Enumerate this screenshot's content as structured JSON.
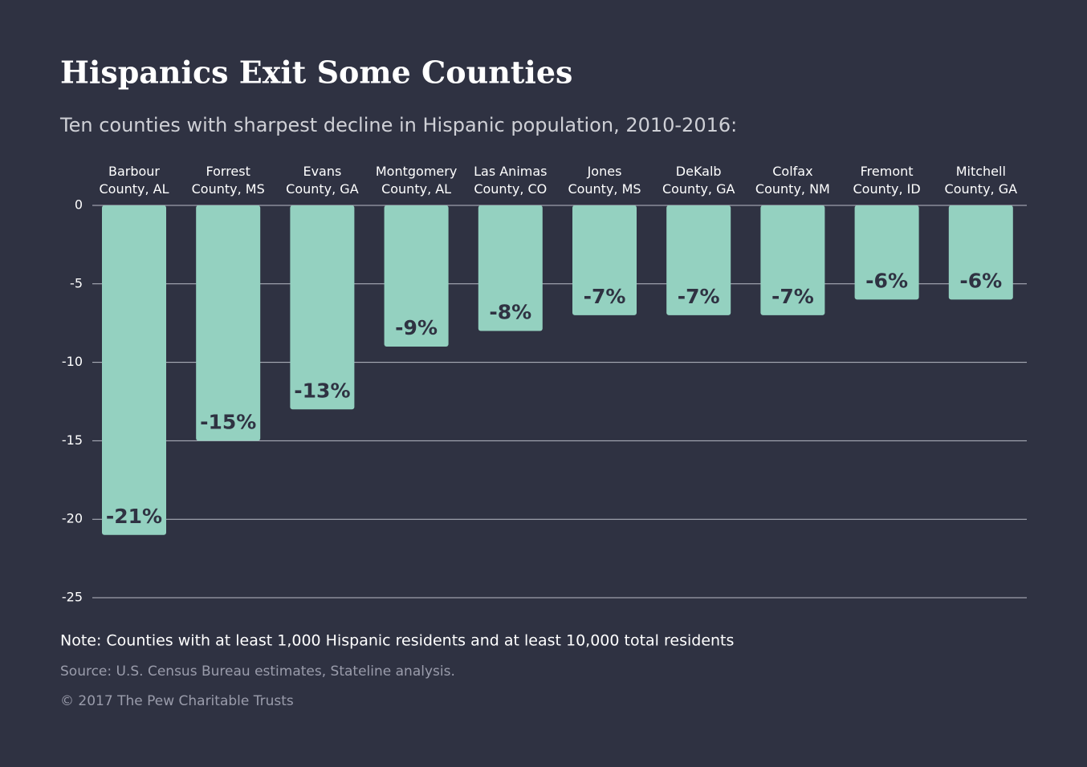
{
  "chart_data": {
    "type": "bar",
    "title": "Hispanics Exit Some Counties",
    "subtitle": "Ten counties with sharpest decline in Hispanic population, 2010-2016:",
    "categories": [
      "Barbour\nCounty, AL",
      "Forrest\nCounty, MS",
      "Evans\nCounty, GA",
      "Montgomery\nCounty, AL",
      "Las Animas\nCounty, CO",
      "Jones\nCounty, MS",
      "DeKalb\nCounty, GA",
      "Colfax\nCounty, NM",
      "Fremont\nCounty, ID",
      "Mitchell\nCounty, GA"
    ],
    "values": [
      -21,
      -15,
      -13,
      -9,
      -8,
      -7,
      -7,
      -7,
      -6,
      -6
    ],
    "value_labels": [
      "-21%",
      "-15%",
      "-13%",
      "-9%",
      "-8%",
      "-7%",
      "-7%",
      "-7%",
      "-6%",
      "-6%"
    ],
    "color": "#94d1c0",
    "ylim": [
      -25,
      0
    ],
    "yticks": [
      0,
      -5,
      -10,
      -15,
      -20,
      -25
    ],
    "grid": true,
    "note": "Note: Counties with at least 1,000 Hispanic residents and at least 10,000 total residents",
    "source": "Source: U.S. Census Bureau estimates, Stateline analysis.",
    "copyright": "© 2017 The Pew Charitable Trusts"
  }
}
